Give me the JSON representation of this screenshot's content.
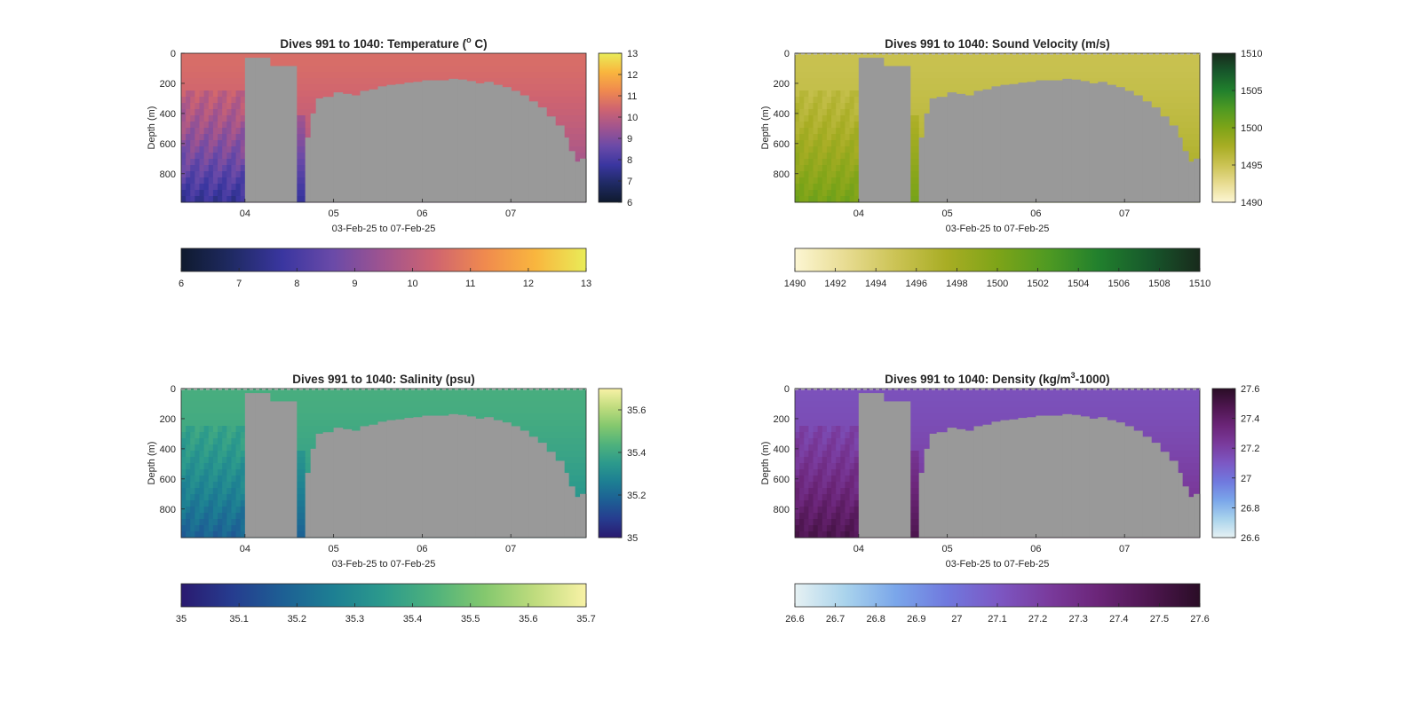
{
  "figure": {
    "background": "#ffffff",
    "axis_color": "#262626",
    "mask_color": "#999999"
  },
  "chart_data": [
    {
      "id": "temperature",
      "type": "heatmap",
      "title": "Dives 991 to 1040: Temperature (° C)",
      "title_parts": [
        "Dives 991 to 1040: Temperature (",
        "o",
        " C)"
      ],
      "xlabel": "03-Feb-25 to 07-Feb-25",
      "ylabel": "Depth (m)",
      "x_ticks": [
        "04",
        "05",
        "06",
        "07"
      ],
      "y_ticks": [
        "0",
        "200",
        "400",
        "600",
        "800"
      ],
      "ylim": [
        0,
        990
      ],
      "y_reversed": true,
      "colorbar_side": {
        "ticks": [
          "6",
          "7",
          "8",
          "9",
          "10",
          "11",
          "12",
          "13"
        ],
        "limits": [
          6,
          13
        ]
      },
      "colorbar_bottom": {
        "ticks": [
          "6",
          "7",
          "8",
          "9",
          "10",
          "11",
          "12",
          "13"
        ],
        "limits": [
          6,
          13
        ]
      },
      "colormap": [
        "#0f1a2e",
        "#1f2a63",
        "#3a36a0",
        "#6a4aa8",
        "#a0548f",
        "#cf6470",
        "#f08a4e",
        "#f9b63e",
        "#e9ec58"
      ],
      "surface_value": 10.6,
      "deep_value": 7.6,
      "gray_from_top": false
    },
    {
      "id": "sound_velocity",
      "type": "heatmap",
      "title": "Dives 991 to 1040: Sound Velocity (m/s)",
      "title_parts": [
        "Dives 991 to 1040: Sound Velocity (m/s)"
      ],
      "xlabel": "03-Feb-25 to 07-Feb-25",
      "ylabel": "Depth (m)",
      "x_ticks": [
        "04",
        "05",
        "06",
        "07"
      ],
      "y_ticks": [
        "0",
        "200",
        "400",
        "600",
        "800"
      ],
      "ylim": [
        0,
        990
      ],
      "y_reversed": true,
      "colorbar_side": {
        "ticks": [
          "1490",
          "1495",
          "1500",
          "1505",
          "1510"
        ],
        "limits": [
          1490,
          1510
        ]
      },
      "colorbar_bottom": {
        "ticks": [
          "1490",
          "1492",
          "1494",
          "1496",
          "1498",
          "1500",
          "1502",
          "1504",
          "1506",
          "1508",
          "1510"
        ],
        "limits": [
          1490,
          1510
        ]
      },
      "colormap": [
        "#fcf6d3",
        "#e8dc92",
        "#cbc354",
        "#a8ad24",
        "#7ea418",
        "#4f9a22",
        "#21802d",
        "#17582b",
        "#182a1c"
      ],
      "surface_value": 1495.2,
      "deep_value": 1500.5,
      "gray_from_top": true
    },
    {
      "id": "salinity",
      "type": "heatmap",
      "title": "Dives 991 to 1040: Salinity (psu)",
      "title_parts": [
        "Dives 991 to 1040: Salinity (psu)"
      ],
      "xlabel": "03-Feb-25 to 07-Feb-25",
      "ylabel": "Depth (m)",
      "x_ticks": [
        "04",
        "05",
        "06",
        "07"
      ],
      "y_ticks": [
        "0",
        "200",
        "400",
        "600",
        "800"
      ],
      "ylim": [
        0,
        990
      ],
      "y_reversed": true,
      "colorbar_side": {
        "ticks": [
          "35",
          "35.2",
          "35.4",
          "35.6"
        ],
        "limits": [
          35,
          35.7
        ]
      },
      "colorbar_bottom": {
        "ticks": [
          "35",
          "35.1",
          "35.2",
          "35.3",
          "35.4",
          "35.5",
          "35.6",
          "35.7"
        ],
        "limits": [
          35,
          35.7
        ]
      },
      "colormap": [
        "#2a1a70",
        "#263c8f",
        "#1d5f94",
        "#1d7f93",
        "#2c9a8c",
        "#4fb27c",
        "#84c86e",
        "#c0dc7e",
        "#f8f2a6"
      ],
      "surface_value": 35.42,
      "deep_value": 35.18,
      "gray_from_top": true
    },
    {
      "id": "density",
      "type": "heatmap",
      "title": "Dives 991 to 1040: Density (kg/m³-1000)",
      "title_parts": [
        "Dives 991 to 1040: Density (kg/m",
        "3",
        "-1000)"
      ],
      "xlabel": "03-Feb-25 to 07-Feb-25",
      "ylabel": "Depth (m)",
      "x_ticks": [
        "04",
        "05",
        "06",
        "07"
      ],
      "y_ticks": [
        "0",
        "200",
        "400",
        "600",
        "800"
      ],
      "ylim": [
        0,
        990
      ],
      "y_reversed": true,
      "colorbar_side": {
        "ticks": [
          "26.6",
          "26.8",
          "27",
          "27.2",
          "27.4",
          "27.6"
        ],
        "limits": [
          26.6,
          27.6
        ]
      },
      "colorbar_bottom": {
        "ticks": [
          "26.6",
          "26.7",
          "26.8",
          "26.9",
          "27",
          "27.1",
          "27.2",
          "27.3",
          "27.4",
          "27.5",
          "27.6"
        ],
        "limits": [
          26.6,
          27.6
        ]
      },
      "colormap": [
        "#e6f1f3",
        "#a9d3ec",
        "#7aa6ea",
        "#7079de",
        "#7c58c4",
        "#7a3b9d",
        "#6b2578",
        "#4e1650",
        "#2a0d26"
      ],
      "surface_value": 27.13,
      "deep_value": 27.48,
      "gray_from_top": true
    }
  ]
}
